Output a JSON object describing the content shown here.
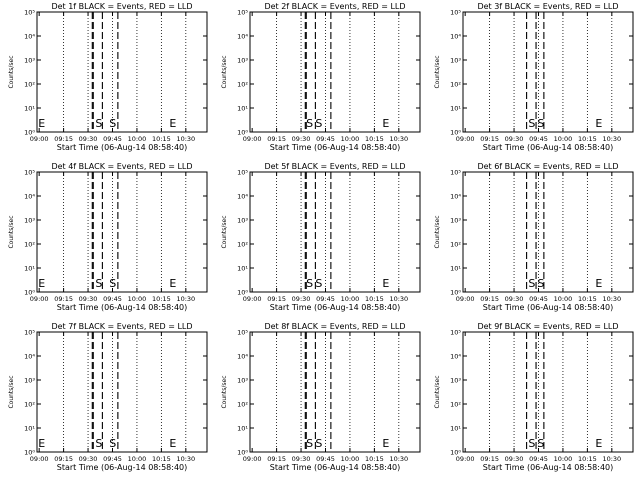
{
  "chart_data": {
    "type": "line",
    "layout": "3x3 grid of identical panels",
    "xlabel": "Start Time (06-Aug-14 08:58:40)",
    "ylabel": "Counts/sec",
    "x_ticks": [
      "09:00",
      "09:15",
      "09:30",
      "09:45",
      "10:00",
      "10:15",
      "10:30"
    ],
    "x_tick_minutes": [
      60,
      75,
      90,
      105,
      120,
      135,
      150
    ],
    "x_range_minutes": [
      58.67,
      163
    ],
    "y_scale": "log",
    "y_ticks": [
      "10⁰",
      "10¹",
      "10²",
      "10³",
      "10⁴",
      "10⁵"
    ],
    "y_range": [
      1,
      100000
    ],
    "panel_title_suffix": " BLACK = Events, RED = LLD",
    "series": [],
    "panels": [
      {
        "title": "Det 1f BLACK = Events, RED = LLD",
        "E_markers_minutes": [
          58.8,
          139.3
        ],
        "S_markers_minutes": [
          94.5,
          103
        ],
        "dashed_lines_minutes": [
          92.6,
          93.2,
          98.8,
          108.3
        ],
        "dotted_lines_minutes": [
          75,
          90,
          105,
          120,
          135,
          150
        ]
      },
      {
        "title": "Det 2f BLACK = Events, RED = LLD",
        "E_markers_minutes": [
          139.3
        ],
        "S_markers_minutes": [
          93.1,
          98.8
        ],
        "dashed_lines_minutes": [
          92.6,
          93.2,
          98.8,
          108.3
        ],
        "dotted_lines_minutes": [
          75,
          90,
          105,
          120,
          135,
          150
        ]
      },
      {
        "title": "Det 3f BLACK = Events, RED = LLD",
        "E_markers_minutes": [
          139.3
        ],
        "S_markers_minutes": [
          98.8,
          104.3
        ],
        "dashed_lines_minutes": [
          97.7,
          103.5,
          108.3
        ],
        "dotted_lines_minutes": [
          75,
          90,
          105,
          120,
          135,
          150
        ]
      },
      {
        "title": "Det 4f BLACK = Events, RED = LLD",
        "E_markers_minutes": [
          58.8,
          139.3
        ],
        "S_markers_minutes": [
          94.5,
          103
        ],
        "dashed_lines_minutes": [
          92.6,
          93.2,
          98.8,
          108.3
        ],
        "dotted_lines_minutes": [
          75,
          90,
          105,
          120,
          135,
          150
        ]
      },
      {
        "title": "Det 5f BLACK = Events, RED = LLD",
        "E_markers_minutes": [
          139.3
        ],
        "S_markers_minutes": [
          93.1,
          98.8
        ],
        "dashed_lines_minutes": [
          92.6,
          93.2,
          98.8,
          108.3
        ],
        "dotted_lines_minutes": [
          75,
          90,
          105,
          120,
          135,
          150
        ]
      },
      {
        "title": "Det 6f BLACK = Events, RED = LLD",
        "E_markers_minutes": [
          139.3
        ],
        "S_markers_minutes": [
          98.8,
          104.3
        ],
        "dashed_lines_minutes": [
          97.7,
          103.5,
          108.3
        ],
        "dotted_lines_minutes": [
          75,
          90,
          105,
          120,
          135,
          150
        ]
      },
      {
        "title": "Det 7f BLACK = Events, RED = LLD",
        "E_markers_minutes": [
          58.8,
          139.3
        ],
        "S_markers_minutes": [
          94.5,
          103
        ],
        "dashed_lines_minutes": [
          92.6,
          93.2,
          98.8,
          108.3
        ],
        "dotted_lines_minutes": [
          75,
          90,
          105,
          120,
          135,
          150
        ]
      },
      {
        "title": "Det 8f BLACK = Events, RED = LLD",
        "E_markers_minutes": [
          139.3
        ],
        "S_markers_minutes": [
          93.1,
          98.8
        ],
        "dashed_lines_minutes": [
          92.6,
          93.2,
          98.8,
          108.3
        ],
        "dotted_lines_minutes": [
          75,
          90,
          105,
          120,
          135,
          150
        ]
      },
      {
        "title": "Det 9f BLACK = Events, RED = LLD",
        "E_markers_minutes": [
          139.3
        ],
        "S_markers_minutes": [
          98.8,
          104.3
        ],
        "dashed_lines_minutes": [
          97.7,
          103.5,
          108.3
        ],
        "dotted_lines_minutes": [
          75,
          90,
          105,
          120,
          135,
          150
        ]
      }
    ],
    "grid": false,
    "legend": "none"
  }
}
